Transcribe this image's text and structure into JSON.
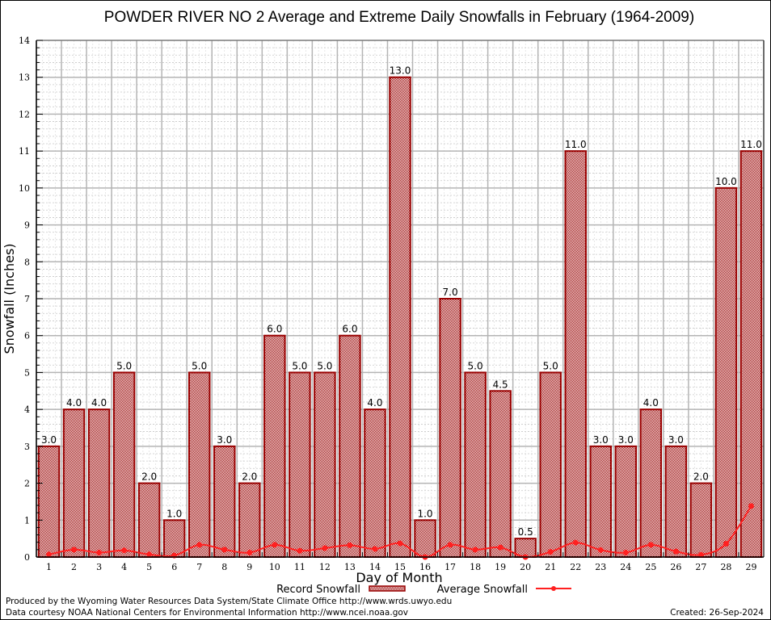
{
  "chart_data": {
    "type": "bar",
    "title": "POWDER RIVER NO 2 Average and Extreme Daily Snowfalls in February (1964-2009)",
    "xlabel": "Day of Month",
    "ylabel": "Snowfall (Inches)",
    "ylim": [
      0,
      14
    ],
    "yticks": [
      "0",
      "1",
      "2",
      "3",
      "4",
      "5",
      "6",
      "7",
      "8",
      "9",
      "10",
      "11",
      "12",
      "13",
      "14"
    ],
    "grid": true,
    "categories": [
      "1",
      "2",
      "3",
      "4",
      "5",
      "6",
      "7",
      "8",
      "9",
      "10",
      "11",
      "12",
      "13",
      "14",
      "15",
      "16",
      "17",
      "18",
      "19",
      "20",
      "21",
      "22",
      "23",
      "24",
      "25",
      "26",
      "27",
      "28",
      "29"
    ],
    "series": [
      {
        "name": "Record Snowfall",
        "type": "bar",
        "color": "#990000",
        "values": [
          3.0,
          4.0,
          4.0,
          5.0,
          2.0,
          1.0,
          5.0,
          3.0,
          2.0,
          6.0,
          5.0,
          5.0,
          6.0,
          4.0,
          13.0,
          1.0,
          7.0,
          5.0,
          4.5,
          0.5,
          5.0,
          11.0,
          3.0,
          3.0,
          4.0,
          3.0,
          2.0,
          10.0,
          11.0
        ],
        "labels": [
          "3.0",
          "4.0",
          "4.0",
          "5.0",
          "2.0",
          "1.0",
          "5.0",
          "3.0",
          "2.0",
          "6.0",
          "5.0",
          "5.0",
          "6.0",
          "4.0",
          "13.0",
          "1.0",
          "7.0",
          "5.0",
          "4.5",
          "0.5",
          "5.0",
          "11.0",
          "3.0",
          "3.0",
          "4.0",
          "3.0",
          "2.0",
          "10.0",
          "11.0"
        ]
      },
      {
        "name": "Average Snowfall",
        "type": "line",
        "color": "#ff2020",
        "values": [
          0.07,
          0.2,
          0.12,
          0.18,
          0.07,
          0.04,
          0.33,
          0.2,
          0.12,
          0.33,
          0.17,
          0.24,
          0.32,
          0.22,
          0.37,
          0.0,
          0.33,
          0.2,
          0.26,
          0.0,
          0.14,
          0.39,
          0.19,
          0.12,
          0.33,
          0.15,
          0.06,
          0.36,
          1.38
        ]
      }
    ],
    "legend": {
      "placement": "bottom-center",
      "items": [
        "Record Snowfall",
        "Average Snowfall"
      ]
    }
  },
  "footer": {
    "line1": "Produced by the Wyoming Water Resources Data System/State Climate Office http://www.wrds.uwyo.edu",
    "line2": "Data courtesy NOAA National Centers for Environmental Information http://www.ncei.noaa.gov",
    "created": "Created: 26-Sep-2024"
  }
}
